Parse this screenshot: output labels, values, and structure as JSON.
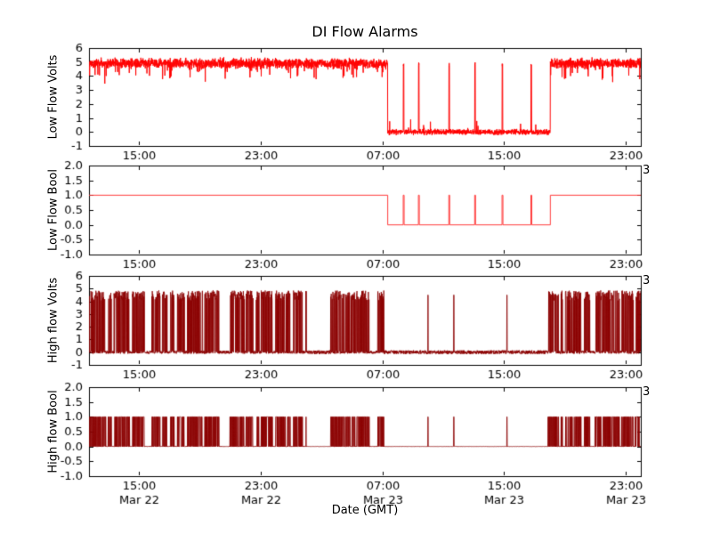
{
  "chart_data": {
    "type": "line",
    "title": "DI Flow Alarms",
    "xlabel": "Date (GMT)",
    "x_hours_range": [
      11.7,
      48.0
    ],
    "x_ticks": [
      {
        "hour": 15,
        "label": "15:00",
        "date": "Mar 22"
      },
      {
        "hour": 23,
        "label": "23:00",
        "date": "Mar 22"
      },
      {
        "hour": 31,
        "label": "07:00",
        "date": "Mar 23"
      },
      {
        "hour": 39,
        "label": "15:00",
        "date": "Mar 23"
      },
      {
        "hour": 47,
        "label": "23:00",
        "date": "Mar 23"
      }
    ],
    "frame_color": "#000000",
    "text_color": "#000000",
    "background_color": "#ffffff",
    "seed": 7,
    "subplots": [
      {
        "name": "low-flow-volts",
        "ylabel": "Low Flow Volts",
        "ylim": [
          -1,
          6
        ],
        "yticks": [
          6,
          5,
          4,
          3,
          2,
          1,
          0,
          -1
        ],
        "ytick_labels": [
          "6",
          "5",
          "4",
          "3",
          "2",
          "1",
          "0",
          "-1"
        ],
        "color": "#ff0000",
        "right_text": "",
        "signal": {
          "kind": "noisy-level",
          "high_segments_hours": [
            [
              11.7,
              31.35
            ],
            [
              42.05,
              48.0
            ]
          ],
          "high_level": 4.9,
          "high_noise": 0.45,
          "low_level": 0.0,
          "low_noise": 0.15,
          "spike_hours": [
            32.4,
            33.4,
            35.4,
            37.1,
            38.9,
            40.8
          ],
          "spike_level": 5.0
        }
      },
      {
        "name": "low-flow-bool",
        "ylabel": "Low Flow Bool",
        "ylim": [
          -1.0,
          2.0
        ],
        "yticks": [
          2.0,
          1.5,
          1.0,
          0.5,
          0.0,
          -0.5,
          -1.0
        ],
        "ytick_labels": [
          "2.0",
          "1.5",
          "1.0",
          "0.5",
          "0.0",
          "-0.5",
          "-1.0"
        ],
        "color": "#ff3b3b",
        "right_text": "3",
        "signal": {
          "kind": "boolean",
          "high_value": 1.0,
          "low_value": 0.0,
          "high_segments_hours": [
            [
              11.7,
              31.35
            ],
            [
              42.05,
              48.0
            ]
          ],
          "spike_hours": [
            32.4,
            33.4,
            35.4,
            37.1,
            38.9,
            40.8
          ]
        }
      },
      {
        "name": "high-flow-volts",
        "ylabel": "High flow Volts",
        "ylim": [
          -1,
          6
        ],
        "yticks": [
          6,
          5,
          4,
          3,
          2,
          1,
          0,
          -1
        ],
        "ytick_labels": [
          "6",
          "5",
          "4",
          "3",
          "2",
          "1",
          "0",
          "-1"
        ],
        "color": "#8b0000",
        "right_text": "3",
        "signal": {
          "kind": "telegraph",
          "active_segments_hours": [
            [
              11.7,
              26.0
            ],
            [
              27.6,
              31.1
            ],
            [
              41.9,
              48.0
            ]
          ],
          "pulse_level": 4.3,
          "pulse_jitter": 0.8,
          "baseline_noise": 0.12,
          "quiet_noise": 0.15,
          "quiet_spike_hours": [
            34.0,
            35.7,
            39.2
          ],
          "quiet_spike_level": 4.5
        }
      },
      {
        "name": "high-flow-bool",
        "ylabel": "High flow Bool",
        "ylim": [
          -1.0,
          2.0
        ],
        "yticks": [
          2.0,
          1.5,
          1.0,
          0.5,
          0.0,
          -0.5,
          -1.0
        ],
        "ytick_labels": [
          "2.0",
          "1.5",
          "1.0",
          "0.5",
          "0.0",
          "-0.5",
          "-1.0"
        ],
        "color": "#8b0000",
        "right_text": "3",
        "signal": {
          "kind": "telegraph",
          "active_segments_hours": [
            [
              11.7,
              26.0
            ],
            [
              27.6,
              31.1
            ],
            [
              41.9,
              48.0
            ]
          ],
          "pulse_level": 1.0,
          "pulse_jitter": 0.0,
          "baseline_noise": 0.01,
          "quiet_noise": 0.005,
          "quiet_spike_hours": [
            34.0,
            35.7,
            39.2
          ],
          "quiet_spike_level": 1.0
        }
      }
    ]
  }
}
